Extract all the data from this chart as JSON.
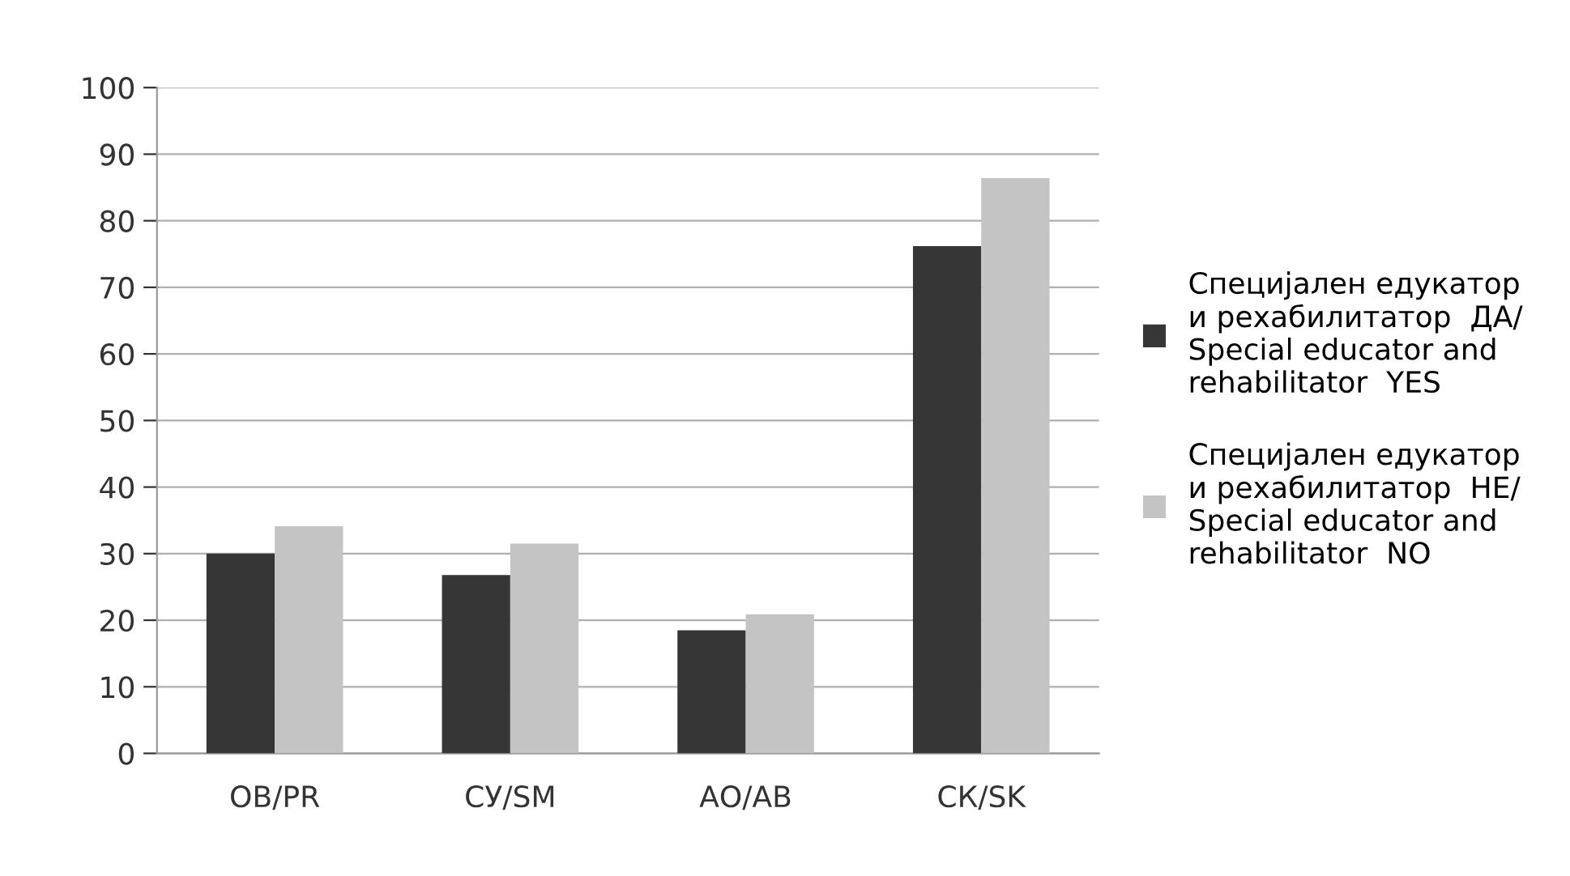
{
  "chart_data": {
    "type": "bar",
    "categories": [
      "ОВ/PR",
      "СУ/SM",
      "АО/AB",
      "СК/SK"
    ],
    "series": [
      {
        "name": "Специјален едукатор\nи рехабилитатор  ДА/\nSpecial educator and\nrehabilitator  YES",
        "color": "#363636",
        "values": [
          30.0,
          26.8,
          18.5,
          76.2
        ]
      },
      {
        "name": "Специјален едукатор\nи рехабилитатор  НЕ/\nSpecial educator and\nrehabilitator  NO",
        "color": "#c4c4c4",
        "values": [
          34.1,
          31.5,
          20.9,
          86.4
        ]
      }
    ],
    "ylim": [
      0,
      100
    ],
    "yticks": [
      0,
      10,
      20,
      30,
      40,
      50,
      60,
      70,
      80,
      90,
      100
    ],
    "grid": "y",
    "legend": "right"
  }
}
